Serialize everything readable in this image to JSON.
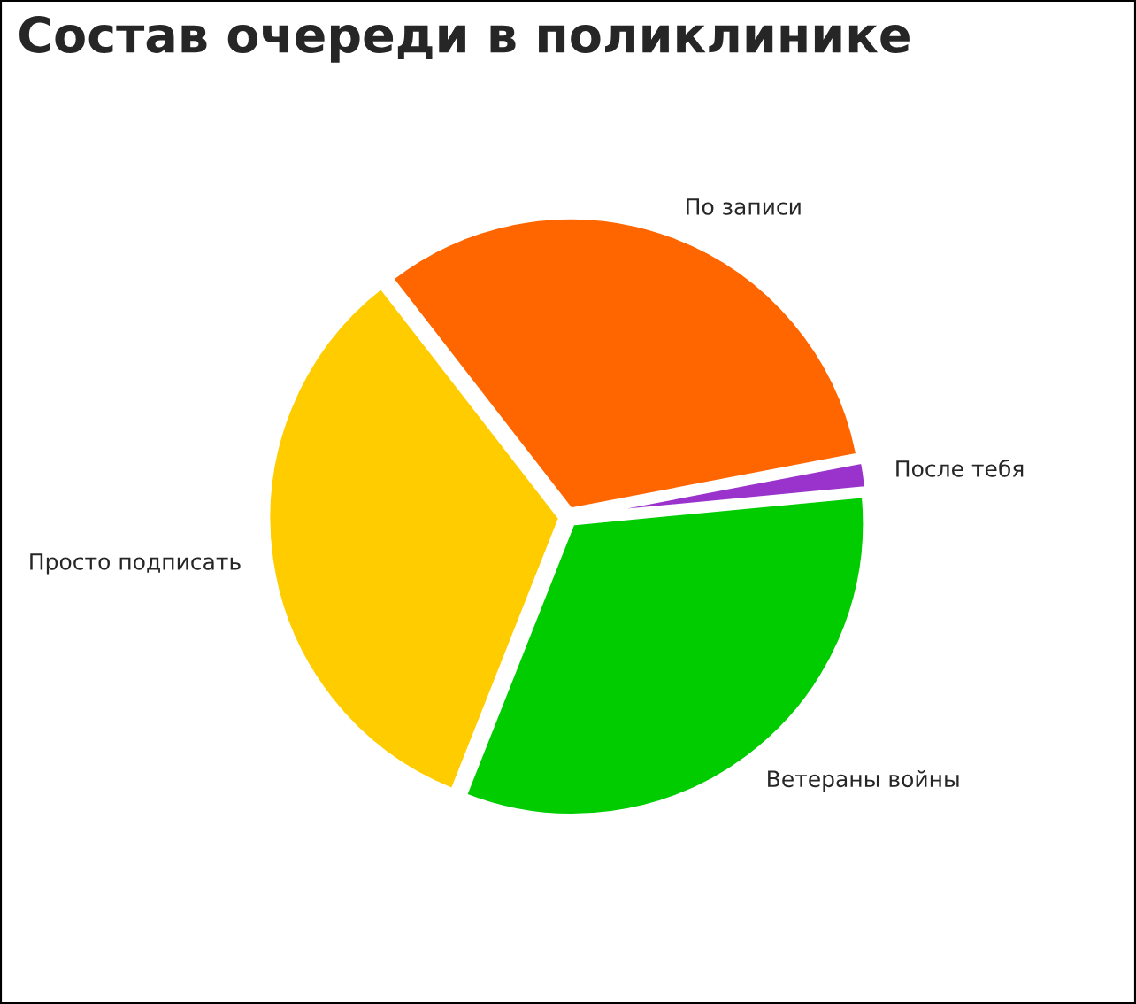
{
  "chart_data": {
    "type": "pie",
    "title": "Состав очереди в поликлинике",
    "categories": [
      "По записи",
      "После тебя",
      "Ветераны войны",
      "Просто подписать"
    ],
    "values": [
      32.5,
      1.5,
      32.5,
      33.5
    ],
    "colors": [
      "#ff6600",
      "#9933cc",
      "#00cc00",
      "#ffcc00"
    ],
    "legend": false
  }
}
